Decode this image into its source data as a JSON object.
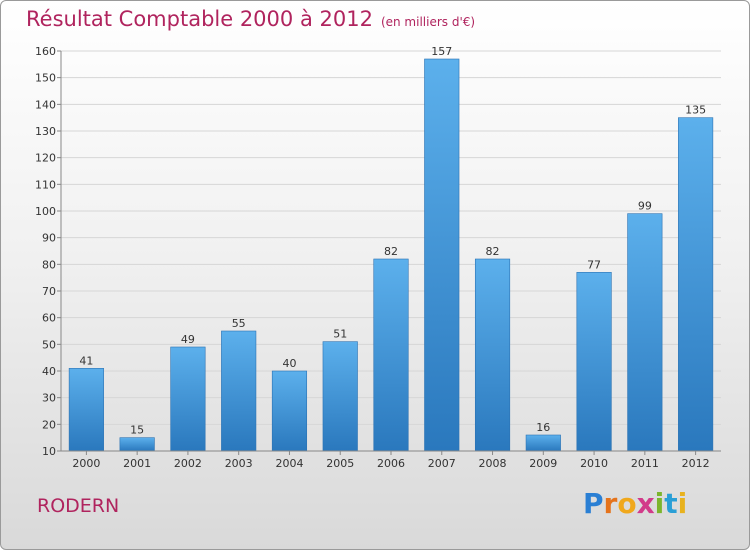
{
  "chart_data": {
    "type": "bar",
    "title": "Résultat Comptable 2000 à 2012",
    "subtitle": "(en milliers d'€)",
    "categories": [
      "2000",
      "2001",
      "2002",
      "2003",
      "2004",
      "2005",
      "2006",
      "2007",
      "2008",
      "2009",
      "2010",
      "2011",
      "2012"
    ],
    "values": [
      41,
      15,
      49,
      55,
      40,
      51,
      82,
      157,
      82,
      16,
      77,
      99,
      135
    ],
    "ylim": [
      10,
      160
    ],
    "yticks": [
      10,
      20,
      30,
      40,
      50,
      60,
      70,
      80,
      90,
      100,
      110,
      120,
      130,
      140,
      150,
      160
    ],
    "xlabel": "",
    "ylabel": "",
    "grid": true
  },
  "place_name": "RODERN",
  "logo": {
    "text": "Proxiti",
    "letters": [
      "P",
      "r",
      "o",
      "x",
      "i",
      "t",
      "i"
    ],
    "colors": [
      "#2a7fd4",
      "#e5731b",
      "#f0a81c",
      "#d23b8a",
      "#7cb52c",
      "#2a9fd6",
      "#e8b21e"
    ]
  },
  "colors": {
    "bar": "#3d96dd",
    "title": "#b0245e"
  }
}
